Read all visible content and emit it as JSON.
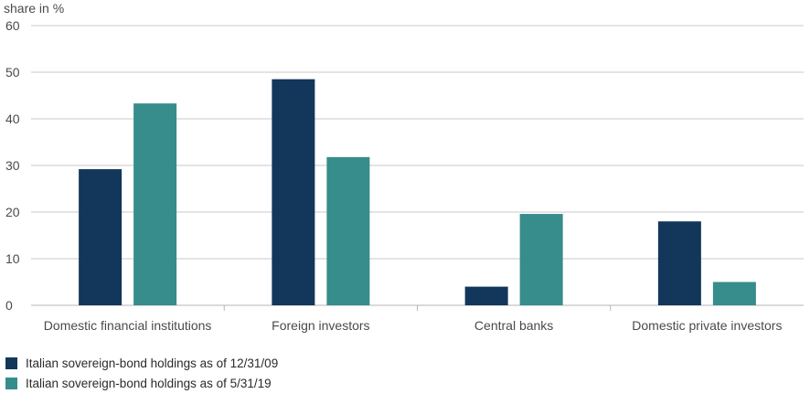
{
  "chart_data": {
    "type": "bar",
    "ylabel": "share in %",
    "ylim": [
      0,
      60
    ],
    "yticks": [
      0,
      10,
      20,
      30,
      40,
      50,
      60
    ],
    "grid": true,
    "legend_position": "bottom-left",
    "categories": [
      "Domestic financial institutions",
      "Foreign investors",
      "Central banks",
      "Domestic private investors"
    ],
    "series": [
      {
        "name": "Italian sovereign-bond holdings as of 12/31/09",
        "color": "#12375a",
        "values": [
          29.2,
          48.5,
          4.0,
          18.0
        ]
      },
      {
        "name": "Italian sovereign-bond holdings as of 5/31/19",
        "color": "#378c8c",
        "values": [
          43.3,
          31.8,
          19.6,
          5.0
        ]
      }
    ]
  }
}
